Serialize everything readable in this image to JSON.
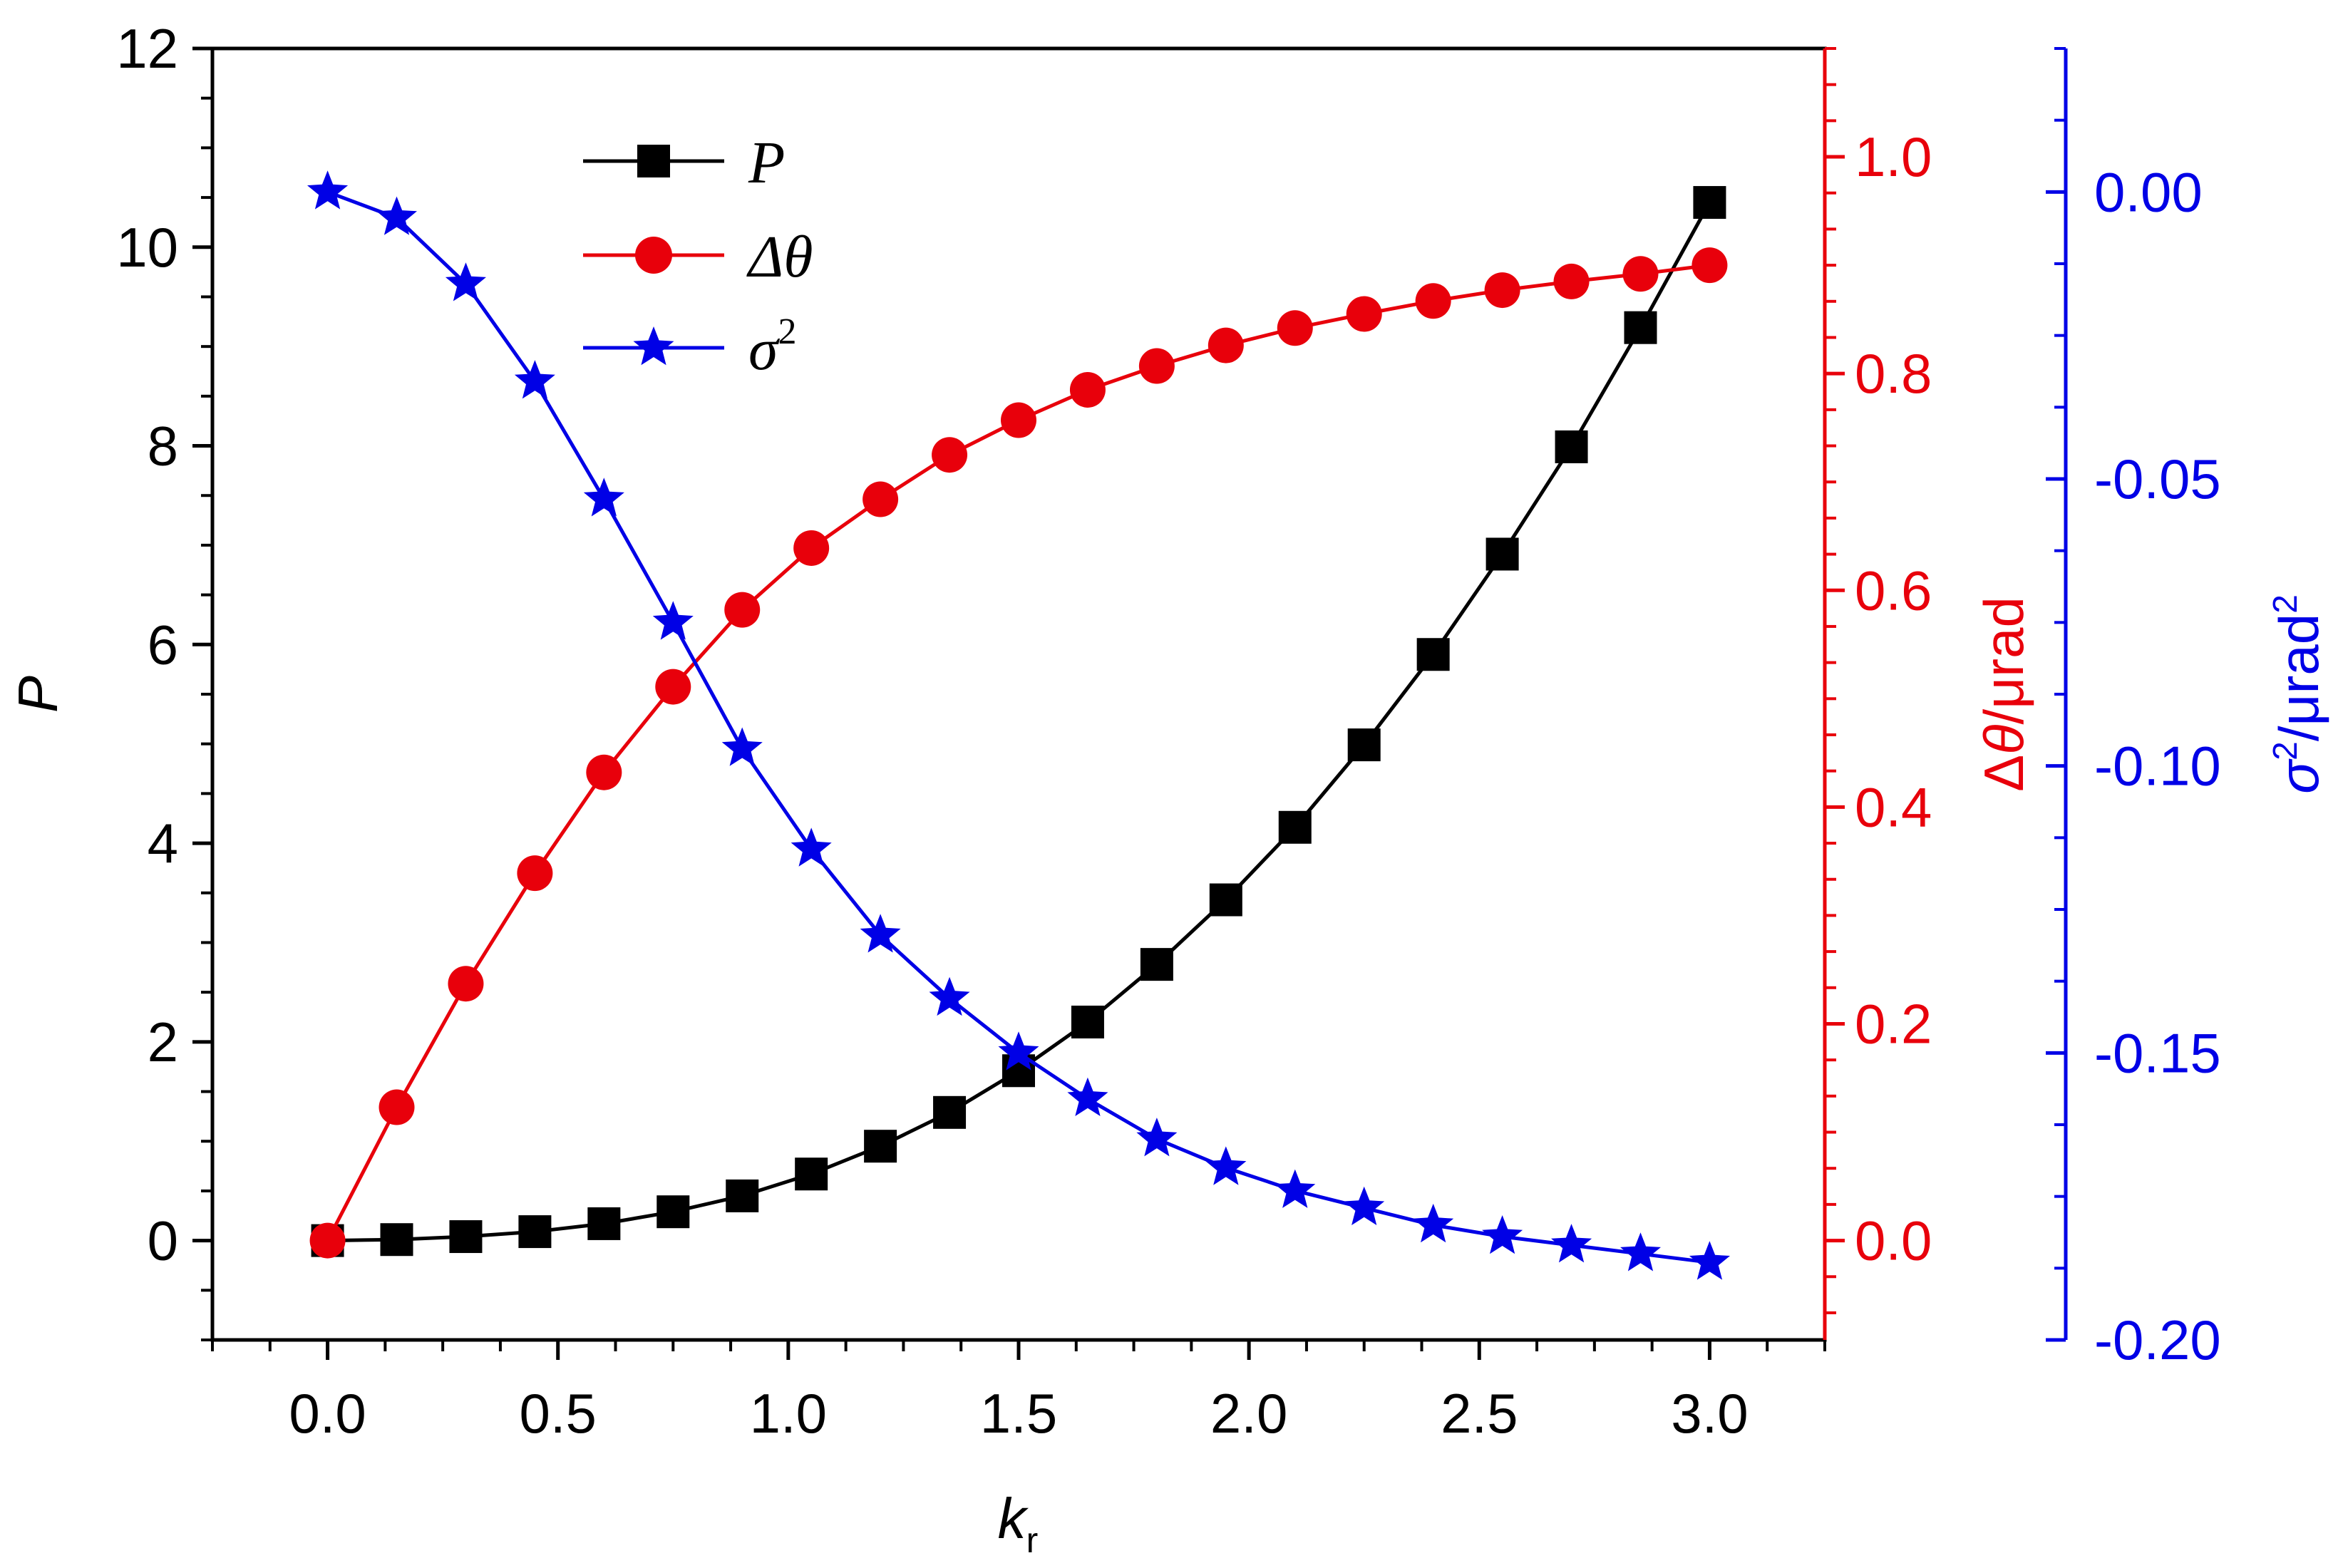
{
  "chart_data": {
    "type": "line",
    "x": [
      0.0,
      0.15,
      0.3,
      0.45,
      0.6,
      0.75,
      0.9,
      1.05,
      1.2,
      1.35,
      1.5,
      1.65,
      1.8,
      1.95,
      2.1,
      2.25,
      2.4,
      2.55,
      2.7,
      2.85,
      3.0
    ],
    "xlabel": {
      "main": "k",
      "sub": "r"
    },
    "xlim": [
      -0.25,
      3.25
    ],
    "xticks": [
      0.0,
      0.5,
      1.0,
      1.5,
      2.0,
      2.5,
      3.0
    ],
    "xtick_labels": [
      "0.0",
      "0.5",
      "1.0",
      "1.5",
      "2.0",
      "2.5",
      "3.0"
    ],
    "axes": {
      "left": {
        "label": "P",
        "color": "#000000",
        "ylim": [
          -1.0,
          12.0
        ],
        "ticks": [
          0,
          2,
          4,
          6,
          8,
          10,
          12
        ],
        "tick_labels": [
          "0",
          "2",
          "4",
          "6",
          "8",
          "10",
          "12"
        ]
      },
      "right1": {
        "label": "Δθ/μrad",
        "label_parts": [
          "Δ",
          "θ",
          "/μrad"
        ],
        "color": "#e8000b",
        "ylim": [
          -0.0917,
          1.1
        ],
        "ticks": [
          0.0,
          0.2,
          0.4,
          0.6,
          0.8,
          1.0
        ],
        "tick_labels": [
          "0.0",
          "0.2",
          "0.4",
          "0.6",
          "0.8",
          "1.0"
        ]
      },
      "right2": {
        "label": "σ2/μrad2",
        "label_parts": [
          "σ",
          "2",
          "/μrad",
          "2"
        ],
        "color": "#0000e6",
        "ylim": [
          -0.2,
          0.025
        ],
        "ticks": [
          0.0,
          -0.05,
          -0.1,
          -0.15,
          -0.2
        ],
        "tick_labels": [
          "0.00",
          "-0.05",
          "-0.10",
          "-0.15",
          "-0.20"
        ]
      }
    },
    "series": [
      {
        "name": "P",
        "legend": {
          "main": "P",
          "sup": ""
        },
        "axis": "left",
        "color": "#000000",
        "marker": "square",
        "values": [
          0.0,
          0.01,
          0.04,
          0.09,
          0.17,
          0.29,
          0.45,
          0.67,
          0.95,
          1.29,
          1.71,
          2.2,
          2.78,
          3.43,
          4.16,
          4.99,
          5.9,
          6.91,
          7.99,
          9.19,
          10.45
        ]
      },
      {
        "name": "Δθ",
        "legend": {
          "main": "Δθ",
          "sup": ""
        },
        "axis": "right1",
        "color": "#e8000b",
        "marker": "circle",
        "values": [
          0.0,
          0.123,
          0.237,
          0.339,
          0.432,
          0.511,
          0.582,
          0.639,
          0.684,
          0.725,
          0.757,
          0.785,
          0.807,
          0.826,
          0.842,
          0.855,
          0.867,
          0.877,
          0.885,
          0.892,
          0.9
        ]
      },
      {
        "name": "σ2",
        "legend": {
          "main": "σ",
          "sup": "2"
        },
        "axis": "right2",
        "color": "#0000e6",
        "marker": "star",
        "values": [
          0.0,
          -0.0045,
          -0.016,
          -0.033,
          -0.0535,
          -0.075,
          -0.097,
          -0.1145,
          -0.1295,
          -0.1405,
          -0.15,
          -0.158,
          -0.165,
          -0.17,
          -0.174,
          -0.177,
          -0.18,
          -0.182,
          -0.1835,
          -0.185,
          -0.1865
        ]
      }
    ]
  }
}
